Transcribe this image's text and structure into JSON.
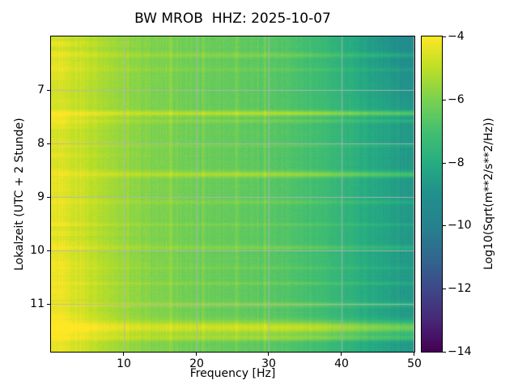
{
  "figure": {
    "title": "BW MROB  HHZ: 2025-10-07",
    "xlabel": "Frequency [Hz]",
    "ylabel": "Lokalzeit (UTC + 2 Stunde)",
    "colorbar_label": "Log10(Sqrt(m**2/s**2/Hz))"
  },
  "chart_data": {
    "type": "heatmap",
    "subtype": "seismic-spectrogram",
    "title": "BW MROB  HHZ: 2025-10-07",
    "xlabel": "Frequency [Hz]",
    "ylabel": "Lokalzeit (UTC + 2 Stunde)",
    "x_range": [
      0,
      50
    ],
    "x_ticks": [
      10,
      20,
      30,
      40,
      50
    ],
    "y_range": [
      6.0,
      11.9
    ],
    "y_ticks": [
      7,
      8,
      9,
      10,
      11
    ],
    "grid": true,
    "grid_color": "#b4b4ba",
    "colorbar": {
      "label": "Log10(Sqrt(m**2/s**2/Hz))",
      "min": -14,
      "max": -4,
      "ticks": [
        -4,
        -6,
        -8,
        -10,
        -12,
        -14
      ],
      "colormap": "viridis"
    },
    "viridis_stops": [
      "#440154",
      "#482878",
      "#3e4989",
      "#31688e",
      "#26828e",
      "#21908c",
      "#27ad81",
      "#44bf70",
      "#7ad151",
      "#bddf26",
      "#fde725"
    ],
    "intensity_model": {
      "units": "Log10(Sqrt(m**2/s**2/Hz))",
      "base_profile": [
        [
          0,
          -4.5
        ],
        [
          1.5,
          -4.6
        ],
        [
          4,
          -4.9
        ],
        [
          7,
          -5.2
        ],
        [
          10,
          -5.6
        ],
        [
          14,
          -5.95
        ],
        [
          20,
          -6.25
        ],
        [
          26,
          -6.45
        ],
        [
          32,
          -6.7
        ],
        [
          38,
          -7.3
        ],
        [
          44,
          -8.1
        ],
        [
          50,
          -8.8
        ]
      ],
      "events": [
        {
          "t": 6.35,
          "amp": 0.45,
          "sigma": 0.03
        },
        {
          "t": 6.62,
          "amp": 0.25,
          "sigma": 0.02
        },
        {
          "t": 7.44,
          "amp": 1.0,
          "sigma": 0.035
        },
        {
          "t": 7.58,
          "amp": 0.4,
          "sigma": 0.025
        },
        {
          "t": 8.05,
          "amp": 0.22,
          "sigma": 0.02
        },
        {
          "t": 8.58,
          "amp": 0.85,
          "sigma": 0.04
        },
        {
          "t": 9.1,
          "amp": 0.3,
          "sigma": 0.025
        },
        {
          "t": 9.52,
          "amp": 0.25,
          "sigma": 0.02
        },
        {
          "t": 9.95,
          "amp": 0.38,
          "sigma": 0.03
        },
        {
          "t": 10.33,
          "amp": 0.25,
          "sigma": 0.02
        },
        {
          "t": 10.62,
          "amp": 0.3,
          "sigma": 0.022
        },
        {
          "t": 11.02,
          "amp": 0.5,
          "sigma": 0.03
        },
        {
          "t": 11.45,
          "amp": 1.25,
          "sigma": 0.085
        },
        {
          "t": 11.64,
          "amp": 0.7,
          "sigma": 0.04
        }
      ],
      "tonal_lines_hz": [
        16.5,
        21.0,
        25.5,
        29.5
      ],
      "noise": {
        "column_amp": 0.34,
        "pixel_amp": 0.28,
        "low_freq_blob_amp": 0.45,
        "row_amp": 0.12
      }
    }
  }
}
